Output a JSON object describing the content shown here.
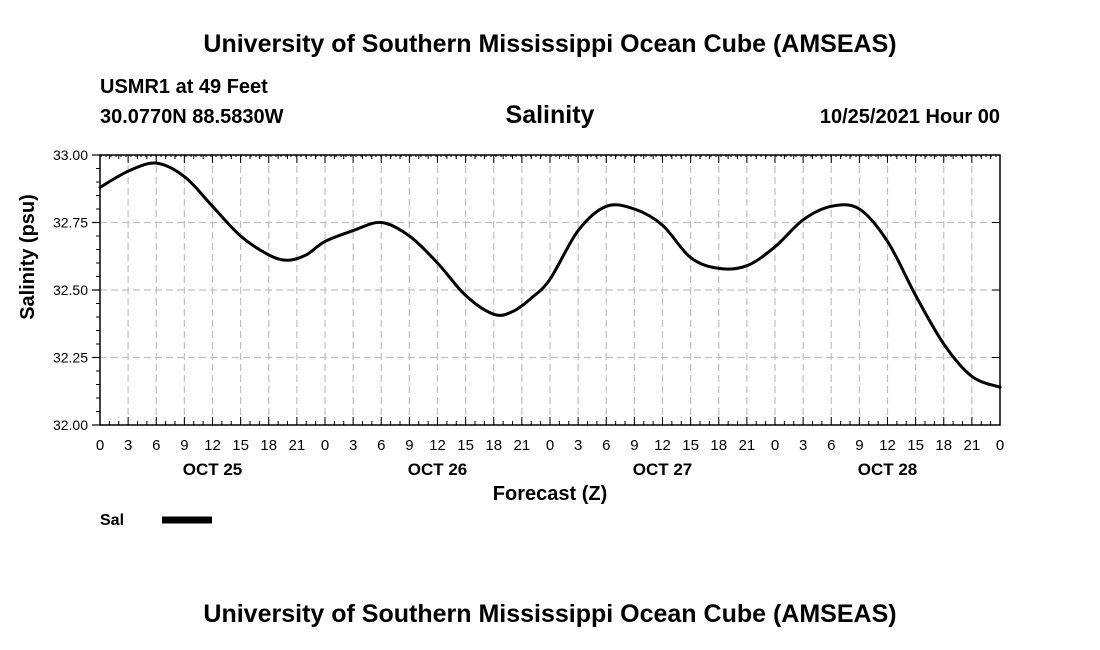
{
  "header": {
    "title_top": "University of Southern Mississippi Ocean Cube (AMSEAS)",
    "title_bottom": "University of Southern Mississippi Ocean Cube (AMSEAS)",
    "station": "USMR1 at 49 Feet",
    "coords": "30.0770N  88.5830W",
    "date": "10/25/2021 Hour 00"
  },
  "colors": {
    "line": "#000000",
    "grid": "#c0c0c0"
  },
  "chart_data": {
    "type": "line",
    "title": "Salinity",
    "xlabel": "Forecast (Z)",
    "ylabel": "Salinity (psu)",
    "ylim": [
      32.0,
      33.0
    ],
    "xlim": [
      0,
      96
    ],
    "yticks": [
      32.0,
      32.25,
      32.5,
      32.75,
      33.0
    ],
    "ytick_labels": [
      "32.00",
      "32.25",
      "32.50",
      "32.75",
      "33.00"
    ],
    "xtick_labels": [
      "0",
      "3",
      "6",
      "9",
      "12",
      "15",
      "18",
      "21",
      "0",
      "3",
      "6",
      "9",
      "12",
      "15",
      "18",
      "21",
      "0",
      "3",
      "6",
      "9",
      "12",
      "15",
      "18",
      "21",
      "0",
      "3",
      "6",
      "9",
      "12",
      "15",
      "18",
      "21",
      "0"
    ],
    "day_labels": [
      "OCT 25",
      "OCT 26",
      "OCT 27",
      "OCT 28"
    ],
    "legend": {
      "label": "Sal",
      "position": "bottom-left"
    },
    "grid": true,
    "series": [
      {
        "name": "Sal",
        "x": [
          0,
          3,
          6,
          9,
          12,
          15,
          18,
          20,
          22,
          24,
          27,
          30,
          33,
          36,
          39,
          42,
          44,
          46,
          48,
          51,
          54,
          57,
          60,
          63,
          66,
          69,
          72,
          75,
          78,
          81,
          84,
          87,
          90,
          93,
          96
        ],
        "values": [
          32.88,
          32.94,
          32.97,
          32.92,
          32.81,
          32.7,
          32.63,
          32.61,
          32.63,
          32.68,
          32.72,
          32.75,
          32.7,
          32.6,
          32.48,
          32.41,
          32.42,
          32.47,
          32.54,
          32.72,
          32.81,
          32.8,
          32.74,
          32.62,
          32.58,
          32.59,
          32.66,
          32.76,
          32.81,
          32.8,
          32.68,
          32.48,
          32.3,
          32.18,
          32.14
        ]
      }
    ]
  }
}
